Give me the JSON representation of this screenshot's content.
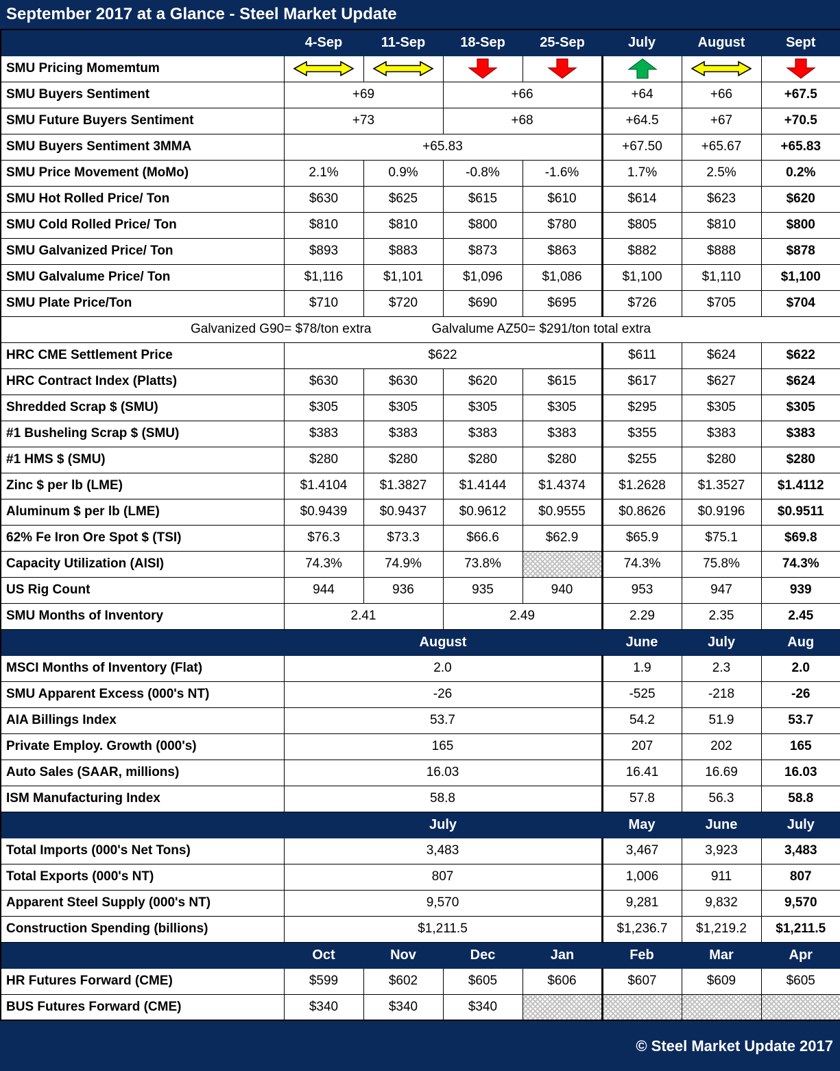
{
  "title": "September 2017 at a Glance - Steel Market Update",
  "footer": "© Steel Market Update 2017",
  "colors": {
    "navy": "#0b2a5c",
    "arrow_yellow": "#ffff00",
    "arrow_red": "#ff0000",
    "arrow_green": "#00b050",
    "hatch_gray": "#c2c2c2",
    "text_white": "#ffffff",
    "text_black": "#000000"
  },
  "chart_data": {
    "type": "table",
    "title": "September 2017 at a Glance - Steel Market Update",
    "columns": [
      "4-Sep",
      "11-Sep",
      "18-Sep",
      "25-Sep",
      "July",
      "August",
      "Sept"
    ],
    "rows": [
      {
        "kind": "arrows",
        "label": "SMU Pricing Momemtum",
        "cells": [
          {
            "arrow": "flat"
          },
          {
            "arrow": "flat"
          },
          {
            "arrow": "down"
          },
          {
            "arrow": "down"
          },
          {
            "arrow": "up"
          },
          {
            "arrow": "flat"
          },
          {
            "arrow": "down"
          }
        ]
      },
      {
        "kind": "data",
        "label": "SMU Buyers Sentiment",
        "cells": [
          {
            "text": "+69",
            "span": 2
          },
          {
            "text": "+66",
            "span": 2
          },
          "+64",
          "+66",
          {
            "text": "+67.5",
            "bold": true
          }
        ]
      },
      {
        "kind": "data",
        "label": "SMU Future Buyers Sentiment",
        "cells": [
          {
            "text": "+73",
            "span": 2
          },
          {
            "text": "+68",
            "span": 2
          },
          "+64.5",
          "+67",
          {
            "text": "+70.5",
            "bold": true
          }
        ]
      },
      {
        "kind": "data",
        "label": "SMU Buyers Sentiment 3MMA",
        "cells": [
          {
            "text": "+65.83",
            "span": 4
          },
          "+67.50",
          "+65.67",
          {
            "text": "+65.83",
            "bold": true
          }
        ]
      },
      {
        "kind": "data",
        "label": "SMU Price Movement (MoMo)",
        "cells": [
          "2.1%",
          "0.9%",
          "-0.8%",
          "-1.6%",
          "1.7%",
          "2.5%",
          {
            "text": "0.2%",
            "bold": true
          }
        ]
      },
      {
        "kind": "data",
        "label": "SMU Hot Rolled Price/ Ton",
        "cells": [
          "$630",
          "$625",
          "$615",
          "$610",
          "$614",
          "$623",
          {
            "text": "$620",
            "bold": true
          }
        ]
      },
      {
        "kind": "data",
        "label": "SMU Cold Rolled Price/ Ton",
        "cells": [
          "$810",
          "$810",
          "$800",
          "$780",
          "$805",
          "$810",
          {
            "text": "$800",
            "bold": true
          }
        ]
      },
      {
        "kind": "data",
        "label": "SMU Galvanized Price/ Ton",
        "cells": [
          "$893",
          "$883",
          "$873",
          "$863",
          "$882",
          "$888",
          {
            "text": "$878",
            "bold": true
          }
        ]
      },
      {
        "kind": "data",
        "label": "SMU Galvalume Price/ Ton",
        "cells": [
          "$1,116",
          "$1,101",
          "$1,096",
          "$1,086",
          "$1,100",
          "$1,110",
          {
            "text": "$1,100",
            "bold": true
          }
        ]
      },
      {
        "kind": "data",
        "label": "SMU Plate Price/Ton",
        "cells": [
          "$710",
          "$720",
          "$690",
          "$695",
          "$726",
          "$705",
          {
            "text": "$704",
            "bold": true
          }
        ]
      },
      {
        "kind": "note",
        "texts": [
          "Galvanized G90= $78/ton extra",
          "Galvalume AZ50= $291/ton total extra"
        ]
      },
      {
        "kind": "data",
        "label": "HRC CME Settlement Price",
        "cells": [
          {
            "text": "$622",
            "span": 4
          },
          "$611",
          "$624",
          {
            "text": "$622",
            "bold": true
          }
        ]
      },
      {
        "kind": "data",
        "label": "HRC Contract Index (Platts)",
        "cells": [
          "$630",
          "$630",
          "$620",
          "$615",
          "$617",
          "$627",
          {
            "text": "$624",
            "bold": true
          }
        ]
      },
      {
        "kind": "data",
        "label": "Shredded Scrap $ (SMU)",
        "cells": [
          "$305",
          "$305",
          "$305",
          "$305",
          "$295",
          "$305",
          {
            "text": "$305",
            "bold": true
          }
        ]
      },
      {
        "kind": "data",
        "label": "#1 Busheling Scrap $ (SMU)",
        "cells": [
          "$383",
          "$383",
          "$383",
          "$383",
          "$355",
          "$383",
          {
            "text": "$383",
            "bold": true
          }
        ]
      },
      {
        "kind": "data",
        "label": "#1 HMS $ (SMU)",
        "cells": [
          "$280",
          "$280",
          "$280",
          "$280",
          "$255",
          "$280",
          {
            "text": "$280",
            "bold": true
          }
        ]
      },
      {
        "kind": "data",
        "label": "Zinc $ per lb (LME)",
        "cells": [
          "$1.4104",
          "$1.3827",
          "$1.4144",
          "$1.4374",
          "$1.2628",
          "$1.3527",
          {
            "text": "$1.4112",
            "bold": true
          }
        ]
      },
      {
        "kind": "data",
        "label": "Aluminum $ per lb (LME)",
        "cells": [
          "$0.9439",
          "$0.9437",
          "$0.9612",
          "$0.9555",
          "$0.8626",
          "$0.9196",
          {
            "text": "$0.9511",
            "bold": true
          }
        ]
      },
      {
        "kind": "data",
        "label": "62% Fe Iron Ore Spot $ (TSI)",
        "cells": [
          "$76.3",
          "$73.3",
          "$66.6",
          "$62.9",
          "$65.9",
          "$75.1",
          {
            "text": "$69.8",
            "bold": true
          }
        ]
      },
      {
        "kind": "data",
        "label": "Capacity Utilization (AISI)",
        "cells": [
          "74.3%",
          "74.9%",
          "73.8%",
          {
            "hatch": true
          },
          "74.3%",
          "75.8%",
          {
            "text": "74.3%",
            "bold": true
          }
        ]
      },
      {
        "kind": "data",
        "label": "US Rig Count",
        "cells": [
          "944",
          "936",
          "935",
          "940",
          "953",
          "947",
          {
            "text": "939",
            "bold": true
          }
        ]
      },
      {
        "kind": "data",
        "label": "SMU Months of Inventory",
        "cells": [
          {
            "text": "2.41",
            "span": 2
          },
          {
            "text": "2.49",
            "span": 2
          },
          "2.29",
          "2.35",
          {
            "text": "2.45",
            "bold": true
          }
        ]
      },
      {
        "kind": "section",
        "label": "",
        "cells": [
          {
            "text": "August",
            "span": 4
          },
          "June",
          "July",
          "Aug"
        ]
      },
      {
        "kind": "data",
        "label": "MSCI Months of Inventory (Flat)",
        "cells": [
          {
            "text": "2.0",
            "span": 4
          },
          "1.9",
          "2.3",
          {
            "text": "2.0",
            "bold": true
          }
        ]
      },
      {
        "kind": "data",
        "label": "SMU Apparent Excess (000's NT)",
        "cells": [
          {
            "text": "-26",
            "span": 4
          },
          "-525",
          "-218",
          {
            "text": "-26",
            "bold": true
          }
        ]
      },
      {
        "kind": "data",
        "label": "AIA Billings Index",
        "cells": [
          {
            "text": "53.7",
            "span": 4
          },
          "54.2",
          "51.9",
          {
            "text": "53.7",
            "bold": true
          }
        ]
      },
      {
        "kind": "data",
        "label": "Private Employ. Growth (000's)",
        "cells": [
          {
            "text": "165",
            "span": 4
          },
          "207",
          "202",
          {
            "text": "165",
            "bold": true
          }
        ]
      },
      {
        "kind": "data",
        "label": "Auto Sales (SAAR, millions)",
        "cells": [
          {
            "text": "16.03",
            "span": 4
          },
          "16.41",
          "16.69",
          {
            "text": "16.03",
            "bold": true
          }
        ]
      },
      {
        "kind": "data",
        "label": "ISM Manufacturing Index",
        "cells": [
          {
            "text": "58.8",
            "span": 4
          },
          "57.8",
          "56.3",
          {
            "text": "58.8",
            "bold": true
          }
        ]
      },
      {
        "kind": "section",
        "label": "",
        "cells": [
          {
            "text": "July",
            "span": 4
          },
          "May",
          "June",
          "July"
        ]
      },
      {
        "kind": "data",
        "label": "Total Imports (000's Net Tons)",
        "cells": [
          {
            "text": "3,483",
            "span": 4
          },
          "3,467",
          "3,923",
          {
            "text": "3,483",
            "bold": true
          }
        ]
      },
      {
        "kind": "data",
        "label": "Total Exports (000's NT)",
        "cells": [
          {
            "text": "807",
            "span": 4
          },
          "1,006",
          "911",
          {
            "text": "807",
            "bold": true
          }
        ]
      },
      {
        "kind": "data",
        "label": "Apparent Steel Supply (000's NT)",
        "cells": [
          {
            "text": "9,570",
            "span": 4
          },
          "9,281",
          "9,832",
          {
            "text": "9,570",
            "bold": true
          }
        ]
      },
      {
        "kind": "data",
        "label": "Construction Spending (billions)",
        "cells": [
          {
            "text": "$1,211.5",
            "span": 4
          },
          "$1,236.7",
          "$1,219.2",
          {
            "text": "$1,211.5",
            "bold": true
          }
        ]
      },
      {
        "kind": "section",
        "label": "",
        "cells": [
          "Oct",
          "Nov",
          "Dec",
          "Jan",
          "Feb",
          "Mar",
          "Apr"
        ]
      },
      {
        "kind": "data",
        "label": "HR Futures Forward (CME)",
        "cells": [
          "$599",
          "$602",
          "$605",
          "$606",
          "$607",
          "$609",
          "$605"
        ]
      },
      {
        "kind": "data",
        "label": "BUS Futures Forward (CME)",
        "cells": [
          "$340",
          "$340",
          "$340",
          {
            "hatch": true
          },
          {
            "hatch": true
          },
          {
            "hatch": true
          },
          {
            "hatch": true
          }
        ]
      }
    ]
  }
}
